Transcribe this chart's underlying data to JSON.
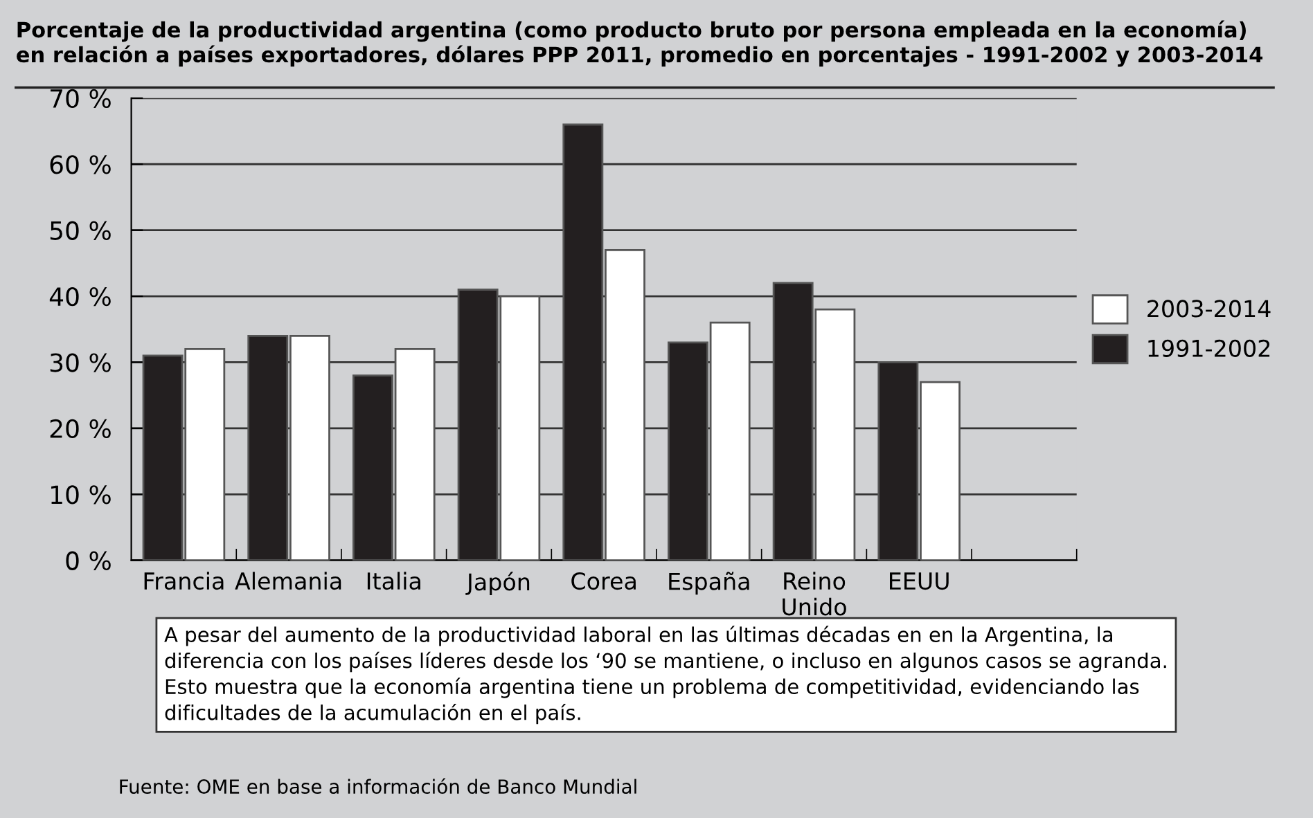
{
  "chart_data": {
    "type": "bar",
    "title": "Porcentaje de la productividad argentina (como producto bruto por persona empleada en la economía)\nen relación a países exportadores, dólares PPP 2011, promedio en porcentajes - 1991-2002 y 2003-2014",
    "categories": [
      "Francia",
      "Alemania",
      "Italia",
      "Japón",
      "Corea",
      "España",
      "Reino\nUnido",
      "EEUU",
      null
    ],
    "series": [
      {
        "name": "1991-2002",
        "color": "#231f20",
        "values": [
          31,
          34,
          28,
          41,
          66,
          33,
          42,
          30,
          null
        ]
      },
      {
        "name": "2003-2014",
        "color": "#ffffff",
        "values": [
          32,
          34,
          32,
          40,
          47,
          36,
          38,
          27,
          null
        ]
      }
    ],
    "ylim": [
      0,
      70
    ],
    "yticks": [
      {
        "value": 0,
        "label": "0 %"
      },
      {
        "value": 10,
        "label": "10 %"
      },
      {
        "value": 20,
        "label": "20 %"
      },
      {
        "value": 30,
        "label": "30 %"
      },
      {
        "value": 40,
        "label": "40 %"
      },
      {
        "value": 50,
        "label": "50 %"
      },
      {
        "value": 60,
        "label": "60 %"
      },
      {
        "value": 70,
        "label": "70 %"
      }
    ],
    "grid": "y",
    "legend": "right",
    "annotations": [
      "A pesar del aumento de la productividad laboral en las últimas décadas en en la Argentina, la\ndiferencia con los países líderes desde los ‘90 se mantiene, o incluso en algunos casos se agranda.\nEsto muestra que la economía argentina tiene un problema de competitividad, evidenciando las\ndificultades de la acumulación en el país.",
      "Fuente: OME en base a información de Banco Mundial"
    ]
  }
}
